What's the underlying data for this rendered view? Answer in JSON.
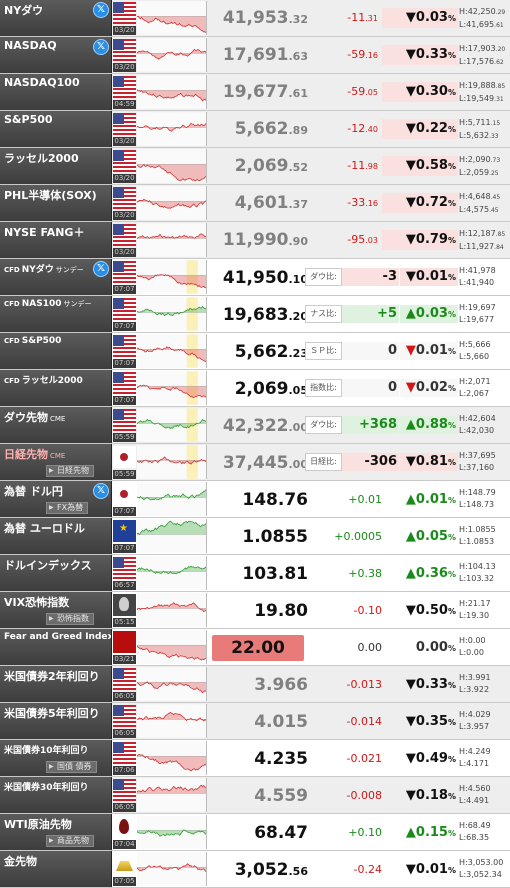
{
  "colors": {
    "up": "#1a8a1a",
    "down": "#d21616",
    "label_bg": "#4a4a4a",
    "fear_greed_box": "#e87a7a"
  },
  "rows": [
    {
      "id": "nydow",
      "name": "NYダウ",
      "x": true,
      "icon": "us-flag",
      "time": "03/20",
      "price_int": "41,953",
      "price_dec": ".32",
      "chg_int": "-11",
      "chg_dec": ".31",
      "pct_arrow": "▼",
      "pct_int": "0.03",
      "pct_unit": "%",
      "high_int": "H:42,250",
      "high_dec": ".29",
      "low_int": "L:41,695",
      "low_dec": ".61",
      "dir": "down",
      "grey": true,
      "chart": "down"
    },
    {
      "id": "nasdaq",
      "name": "NASDAQ",
      "x": true,
      "icon": "us-flag",
      "time": "03/20",
      "price_int": "17,691",
      "price_dec": ".63",
      "chg_int": "-59",
      "chg_dec": ".16",
      "pct_arrow": "▼",
      "pct_int": "0.33",
      "pct_unit": "%",
      "high_int": "H:17,903",
      "high_dec": ".20",
      "low_int": "L:17,576",
      "low_dec": ".62",
      "dir": "down",
      "grey": true,
      "chart": "down"
    },
    {
      "id": "nasdaq100",
      "name": "NASDAQ100",
      "x": false,
      "icon": "us-flag",
      "time": "04:59",
      "price_int": "19,677",
      "price_dec": ".61",
      "chg_int": "-59",
      "chg_dec": ".05",
      "pct_arrow": "▼",
      "pct_int": "0.30",
      "pct_unit": "%",
      "high_int": "H:19,888",
      "high_dec": ".85",
      "low_int": "L:19,549",
      "low_dec": ".31",
      "dir": "down",
      "grey": true,
      "chart": "down"
    },
    {
      "id": "sp500",
      "name": "S&P500",
      "x": false,
      "icon": "us-flag",
      "time": "03/20",
      "price_int": "5,662",
      "price_dec": ".89",
      "chg_int": "-12",
      "chg_dec": ".40",
      "pct_arrow": "▼",
      "pct_int": "0.22",
      "pct_unit": "%",
      "high_int": "H:5,711",
      "high_dec": ".15",
      "low_int": "L:5,632",
      "low_dec": ".33",
      "dir": "down",
      "grey": true,
      "chart": "down"
    },
    {
      "id": "russell",
      "name": "ラッセル2000",
      "x": false,
      "icon": "us-flag",
      "time": "03/20",
      "price_int": "2,069",
      "price_dec": ".52",
      "chg_int": "-11",
      "chg_dec": ".98",
      "pct_arrow": "▼",
      "pct_int": "0.58",
      "pct_unit": "%",
      "high_int": "H:2,090",
      "high_dec": ".73",
      "low_int": "L:2,059",
      "low_dec": ".25",
      "dir": "down",
      "grey": true,
      "chart": "down"
    },
    {
      "id": "sox",
      "name": "PHL半導体(SOX)",
      "x": false,
      "icon": "us-flag",
      "time": "03/20",
      "price_int": "4,601",
      "price_dec": ".37",
      "chg_int": "-33",
      "chg_dec": ".16",
      "pct_arrow": "▼",
      "pct_int": "0.72",
      "pct_unit": "%",
      "high_int": "H:4,648",
      "high_dec": ".45",
      "low_int": "L:4,575",
      "low_dec": ".45",
      "dir": "down",
      "grey": true,
      "chart": "down"
    },
    {
      "id": "fang",
      "name": "NYSE FANG＋",
      "x": false,
      "icon": "us-flag",
      "time": "03/20",
      "price_int": "11,990",
      "price_dec": ".90",
      "chg_int": "-95",
      "chg_dec": ".03",
      "pct_arrow": "▼",
      "pct_int": "0.79",
      "pct_unit": "%",
      "high_int": "H:12,187",
      "high_dec": ".85",
      "low_int": "L:11,927",
      "low_dec": ".84",
      "dir": "down",
      "grey": true,
      "chart": "down"
    }
  ],
  "cfd_rows": [
    {
      "id": "cfd-dow",
      "prefix": "CFD",
      "name": "NYダウ",
      "suffix": "サンデー",
      "x": true,
      "icon": "us-flag",
      "time": "07:07",
      "price_int": "41,950",
      "price_dec": ".10",
      "tag": "ダウ比:",
      "cfd_chg": "-3",
      "pct_arrow": "▼",
      "pct_int": "0.01",
      "pct_unit": "%",
      "high": "H:41,978",
      "low": "L:41,940",
      "dir": "down",
      "grey": false,
      "shade": true
    },
    {
      "id": "cfd-nas",
      "prefix": "CFD",
      "name": "NAS100",
      "suffix": "サンデー",
      "x": false,
      "icon": "us-flag",
      "time": "07:07",
      "price_int": "19,683",
      "price_dec": ".20",
      "tag": "ナス比:",
      "cfd_chg": "+5",
      "pct_arrow": "▲",
      "pct_int": "0.03",
      "pct_unit": "%",
      "high": "H:19,697",
      "low": "L:19,677",
      "dir": "up",
      "grey": false,
      "shade": true
    },
    {
      "id": "cfd-sp",
      "prefix": "CFD",
      "name": "S&P500",
      "suffix": "",
      "x": false,
      "icon": "us-flag",
      "time": "07:07",
      "price_int": "5,662",
      "price_dec": ".23",
      "tag": "ＳＰ比:",
      "cfd_chg": "0",
      "pct_arrow": "▼",
      "pct_int": "0.01",
      "pct_unit": "%",
      "high": "H:5,666",
      "low": "L:5,660",
      "dir": "zero",
      "grey": false,
      "shade": true
    },
    {
      "id": "cfd-rus",
      "prefix": "CFD",
      "name": "ラッセル2000",
      "suffix": "",
      "x": false,
      "icon": "us-flag",
      "time": "07:07",
      "price_int": "2,069",
      "price_dec": ".05",
      "tag": "指数比:",
      "cfd_chg": "0",
      "pct_arrow": "▼",
      "pct_int": "0.02",
      "pct_unit": "%",
      "high": "H:2,071",
      "low": "L:2,067",
      "dir": "zero",
      "grey": false,
      "shade": true
    },
    {
      "id": "dow-fut",
      "prefix": "",
      "name": "ダウ先物",
      "suffix": "CME",
      "x": false,
      "icon": "us-flag",
      "time": "05:59",
      "price_int": "42,322",
      "price_dec": ".00",
      "tag": "ダウ比:",
      "cfd_chg": "+368",
      "pct_arrow": "▲",
      "pct_int": "0.88",
      "pct_unit": "%",
      "high": "H:42,604",
      "low": "L:42,030",
      "dir": "up",
      "grey": true,
      "shade": true
    },
    {
      "id": "nikkei-fut",
      "prefix": "",
      "name": "日経先物",
      "suffix": "CME",
      "sub": "日経先物",
      "x": false,
      "icon": "jp-flag",
      "time": "05:59",
      "price_int": "37,445",
      "price_dec": ".00",
      "tag": "日経比:",
      "cfd_chg": "-306",
      "pct_arrow": "▼",
      "pct_int": "0.81",
      "pct_unit": "%",
      "high": "H:37,695",
      "low": "L:37,160",
      "dir": "down",
      "grey": true,
      "shade": true,
      "redname": true
    }
  ],
  "other_rows": [
    {
      "id": "usdjpy",
      "name": "為替 ドル円",
      "sub": "FX為替",
      "x": true,
      "icon": "jp-flag",
      "time": "07:07",
      "price": "148.76",
      "chg": "+0.01",
      "pct_arrow": "▲",
      "pct_int": "0.01",
      "pct_unit": "%",
      "high": "H:148.79",
      "low": "L:148.73",
      "dir": "up",
      "grey": false,
      "box": false
    },
    {
      "id": "eurusd",
      "name": "為替 ユーロドル",
      "x": false,
      "icon": "eu-flag",
      "time": "07:07",
      "price": "1.0855",
      "chg": "+0.0005",
      "pct_arrow": "▲",
      "pct_int": "0.05",
      "pct_unit": "%",
      "high": "H:1.0855",
      "low": "L:1.0853",
      "dir": "up",
      "grey": false,
      "box": false
    },
    {
      "id": "dxy",
      "name": "ドルインデックス",
      "x": false,
      "icon": "us-flag",
      "time": "06:57",
      "price": "103.81",
      "chg": "+0.38",
      "pct_arrow": "▲",
      "pct_int": "0.36",
      "pct_unit": "%",
      "high": "H:104.13",
      "low": "L:103.32",
      "dir": "up",
      "grey": false,
      "box": false
    },
    {
      "id": "vix",
      "name": "VIX恐怖指数",
      "sub": "恐怖指数",
      "x": false,
      "icon": "vix-icon",
      "time": "05:15",
      "price": "19.80",
      "chg": "-0.10",
      "pct_arrow": "▼",
      "pct_int": "0.50",
      "pct_unit": "%",
      "high": "H:21.17",
      "low": "L:19.30",
      "dir": "down",
      "grey": false,
      "box": false
    },
    {
      "id": "fear",
      "name": "Fear and Greed Index",
      "x": false,
      "icon": "fear-greed-icon",
      "time": "03/21",
      "price": "22.00",
      "chg": "0.00",
      "pct_arrow": "",
      "pct_int": "0.00",
      "pct_unit": "%",
      "high": "H:0.00",
      "low": "L:0.00",
      "dir": "zero",
      "grey": false,
      "box": true
    },
    {
      "id": "us2y",
      "name": "米国債券2年利回り",
      "x": false,
      "icon": "us-flag",
      "time": "06:05",
      "price": "3.966",
      "chg": "-0.013",
      "pct_arrow": "▼",
      "pct_int": "0.33",
      "pct_unit": "%",
      "high": "H:3.991",
      "low": "L:3.922",
      "dir": "down",
      "grey": true,
      "box": false,
      "dim": true
    },
    {
      "id": "us5y",
      "name": "米国債券5年利回り",
      "x": false,
      "icon": "us-flag",
      "time": "06:05",
      "price": "4.015",
      "chg": "-0.014",
      "pct_arrow": "▼",
      "pct_int": "0.35",
      "pct_unit": "%",
      "high": "H:4.029",
      "low": "L:3.957",
      "dir": "down",
      "grey": true,
      "box": false,
      "dim": true
    },
    {
      "id": "us10y",
      "name": "米国債券10年利回り",
      "sub": "国債 債券",
      "x": false,
      "icon": "us-flag",
      "time": "07:06",
      "price": "4.235",
      "chg": "-0.021",
      "pct_arrow": "▼",
      "pct_int": "0.49",
      "pct_unit": "%",
      "high": "H:4.249",
      "low": "L:4.171",
      "dir": "down",
      "grey": false,
      "box": false
    },
    {
      "id": "us30y",
      "name": "米国債券30年利回り",
      "x": false,
      "icon": "us-flag",
      "time": "06:05",
      "price": "4.559",
      "chg": "-0.008",
      "pct_arrow": "▼",
      "pct_int": "0.18",
      "pct_unit": "%",
      "high": "H:4.560",
      "low": "L:4.491",
      "dir": "down",
      "grey": true,
      "box": false,
      "dim": true
    },
    {
      "id": "wti",
      "name": "WTI原油先物",
      "sub": "商品先物",
      "x": false,
      "icon": "oil-icon",
      "time": "07:04",
      "price": "68.47",
      "chg": "+0.10",
      "pct_arrow": "▲",
      "pct_int": "0.15",
      "pct_unit": "%",
      "high": "H:68.49",
      "low": "L:68.35",
      "dir": "up",
      "grey": false,
      "box": false
    },
    {
      "id": "gold",
      "name": "金先物",
      "x": false,
      "icon": "gold-icon",
      "time": "07:05",
      "price": "3,052",
      "price_dec": ".56",
      "chg": "-0.24",
      "pct_arrow": "▼",
      "pct_int": "0.01",
      "pct_unit": "%",
      "high": "H:3,053.00",
      "low": "L:3,052.34",
      "dir": "down",
      "grey": false,
      "box": false
    }
  ]
}
